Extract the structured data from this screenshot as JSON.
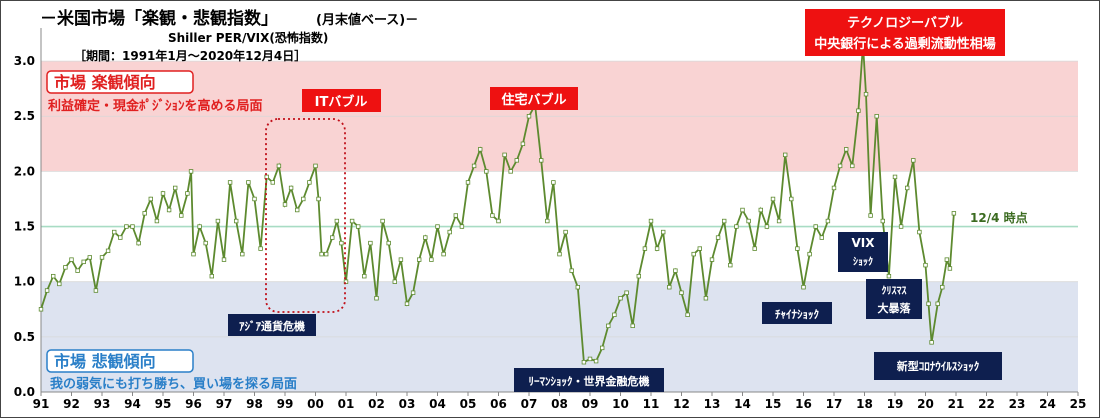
{
  "chart_data": {
    "type": "line",
    "title": "－米国市場「楽観・悲観指数」",
    "title_suffix": "(月末値ベース)－",
    "subtitle": "Shiller PER/VIX(恐怖指数)",
    "period": "［期間：1991年1月～2020年12月4日］",
    "y_ticks": [
      "0.0",
      "0.5",
      "1.0",
      "1.5",
      "2.0",
      "2.5",
      "3.0"
    ],
    "ylim": [
      0,
      3.3
    ],
    "x_ticks": [
      "91",
      "92",
      "93",
      "94",
      "95",
      "96",
      "97",
      "98",
      "99",
      "00",
      "01",
      "02",
      "03",
      "04",
      "05",
      "06",
      "07",
      "08",
      "09",
      "10",
      "11",
      "12",
      "13",
      "14",
      "15",
      "16",
      "17",
      "18",
      "19",
      "20",
      "21",
      "22",
      "23",
      "24",
      "25"
    ],
    "xlim": [
      1991,
      2025
    ],
    "bands": {
      "optimism": {
        "from": 2.0,
        "to": 3.0,
        "color": "#f9d3d3"
      },
      "pessimism": {
        "from": 0.0,
        "to": 1.0,
        "color": "#dde3f0"
      },
      "reference_line": {
        "value": 1.5,
        "color": "#a8dcc4"
      }
    },
    "series": [
      {
        "color": "#5d8a2f",
        "points": [
          [
            1991.0,
            0.75
          ],
          [
            1991.2,
            0.92
          ],
          [
            1991.4,
            1.05
          ],
          [
            1991.6,
            0.98
          ],
          [
            1991.8,
            1.13
          ],
          [
            1992.0,
            1.2
          ],
          [
            1992.2,
            1.1
          ],
          [
            1992.4,
            1.18
          ],
          [
            1992.6,
            1.22
          ],
          [
            1992.8,
            0.92
          ],
          [
            1993.0,
            1.22
          ],
          [
            1993.2,
            1.28
          ],
          [
            1993.4,
            1.45
          ],
          [
            1993.6,
            1.4
          ],
          [
            1993.8,
            1.5
          ],
          [
            1994.0,
            1.5
          ],
          [
            1994.2,
            1.35
          ],
          [
            1994.4,
            1.62
          ],
          [
            1994.6,
            1.75
          ],
          [
            1994.8,
            1.55
          ],
          [
            1995.0,
            1.8
          ],
          [
            1995.2,
            1.65
          ],
          [
            1995.4,
            1.85
          ],
          [
            1995.6,
            1.6
          ],
          [
            1995.8,
            1.8
          ],
          [
            1995.92,
            2.0
          ],
          [
            1996.0,
            1.25
          ],
          [
            1996.2,
            1.5
          ],
          [
            1996.4,
            1.35
          ],
          [
            1996.6,
            1.05
          ],
          [
            1996.8,
            1.55
          ],
          [
            1997.0,
            1.2
          ],
          [
            1997.2,
            1.9
          ],
          [
            1997.4,
            1.55
          ],
          [
            1997.6,
            1.25
          ],
          [
            1997.8,
            1.9
          ],
          [
            1998.0,
            1.75
          ],
          [
            1998.2,
            1.3
          ],
          [
            1998.4,
            1.95
          ],
          [
            1998.6,
            1.9
          ],
          [
            1998.8,
            2.05
          ],
          [
            1999.0,
            1.7
          ],
          [
            1999.2,
            1.85
          ],
          [
            1999.4,
            1.65
          ],
          [
            1999.6,
            1.75
          ],
          [
            1999.8,
            1.9
          ],
          [
            2000.0,
            2.05
          ],
          [
            2000.1,
            1.75
          ],
          [
            2000.2,
            1.25
          ],
          [
            2000.35,
            1.25
          ],
          [
            2000.55,
            1.4
          ],
          [
            2000.7,
            1.55
          ],
          [
            2000.85,
            1.35
          ],
          [
            2001.0,
            1.0
          ],
          [
            2001.2,
            1.55
          ],
          [
            2001.4,
            1.5
          ],
          [
            2001.6,
            1.05
          ],
          [
            2001.8,
            1.35
          ],
          [
            2002.0,
            0.85
          ],
          [
            2002.2,
            1.55
          ],
          [
            2002.4,
            1.35
          ],
          [
            2002.6,
            1.0
          ],
          [
            2002.8,
            1.2
          ],
          [
            2003.0,
            0.8
          ],
          [
            2003.2,
            0.9
          ],
          [
            2003.4,
            1.2
          ],
          [
            2003.6,
            1.4
          ],
          [
            2003.8,
            1.2
          ],
          [
            2004.0,
            1.5
          ],
          [
            2004.2,
            1.25
          ],
          [
            2004.4,
            1.45
          ],
          [
            2004.6,
            1.6
          ],
          [
            2004.8,
            1.5
          ],
          [
            2005.0,
            1.9
          ],
          [
            2005.2,
            2.05
          ],
          [
            2005.4,
            2.2
          ],
          [
            2005.6,
            2.0
          ],
          [
            2005.8,
            1.6
          ],
          [
            2006.0,
            1.55
          ],
          [
            2006.2,
            2.15
          ],
          [
            2006.4,
            2.0
          ],
          [
            2006.6,
            2.1
          ],
          [
            2006.8,
            2.25
          ],
          [
            2007.0,
            2.5
          ],
          [
            2007.2,
            2.6
          ],
          [
            2007.4,
            2.1
          ],
          [
            2007.6,
            1.55
          ],
          [
            2007.8,
            1.9
          ],
          [
            2008.0,
            1.25
          ],
          [
            2008.2,
            1.45
          ],
          [
            2008.4,
            1.1
          ],
          [
            2008.6,
            0.95
          ],
          [
            2008.8,
            0.27
          ],
          [
            2009.0,
            0.3
          ],
          [
            2009.2,
            0.28
          ],
          [
            2009.4,
            0.4
          ],
          [
            2009.6,
            0.6
          ],
          [
            2009.8,
            0.7
          ],
          [
            2010.0,
            0.85
          ],
          [
            2010.2,
            0.9
          ],
          [
            2010.4,
            0.6
          ],
          [
            2010.6,
            1.05
          ],
          [
            2010.8,
            1.3
          ],
          [
            2011.0,
            1.55
          ],
          [
            2011.2,
            1.3
          ],
          [
            2011.4,
            1.45
          ],
          [
            2011.6,
            0.95
          ],
          [
            2011.8,
            1.1
          ],
          [
            2012.0,
            0.9
          ],
          [
            2012.2,
            0.7
          ],
          [
            2012.4,
            1.25
          ],
          [
            2012.6,
            1.3
          ],
          [
            2012.8,
            0.85
          ],
          [
            2013.0,
            1.2
          ],
          [
            2013.2,
            1.4
          ],
          [
            2013.4,
            1.55
          ],
          [
            2013.6,
            1.15
          ],
          [
            2013.8,
            1.5
          ],
          [
            2014.0,
            1.65
          ],
          [
            2014.2,
            1.55
          ],
          [
            2014.4,
            1.3
          ],
          [
            2014.6,
            1.65
          ],
          [
            2014.8,
            1.5
          ],
          [
            2015.0,
            1.75
          ],
          [
            2015.2,
            1.55
          ],
          [
            2015.4,
            2.15
          ],
          [
            2015.6,
            1.75
          ],
          [
            2015.8,
            1.3
          ],
          [
            2016.0,
            0.95
          ],
          [
            2016.2,
            1.25
          ],
          [
            2016.4,
            1.5
          ],
          [
            2016.6,
            1.4
          ],
          [
            2016.8,
            1.55
          ],
          [
            2017.0,
            1.85
          ],
          [
            2017.2,
            2.05
          ],
          [
            2017.4,
            2.2
          ],
          [
            2017.6,
            2.05
          ],
          [
            2017.8,
            2.55
          ],
          [
            2017.95,
            3.15
          ],
          [
            2018.05,
            2.7
          ],
          [
            2018.2,
            1.6
          ],
          [
            2018.4,
            2.5
          ],
          [
            2018.6,
            1.55
          ],
          [
            2018.8,
            1.05
          ],
          [
            2019.0,
            1.95
          ],
          [
            2019.2,
            1.5
          ],
          [
            2019.4,
            1.85
          ],
          [
            2019.6,
            2.1
          ],
          [
            2019.8,
            1.45
          ],
          [
            2020.0,
            1.15
          ],
          [
            2020.1,
            0.8
          ],
          [
            2020.2,
            0.45
          ],
          [
            2020.4,
            0.8
          ],
          [
            2020.55,
            0.95
          ],
          [
            2020.7,
            1.2
          ],
          [
            2020.8,
            1.12
          ],
          [
            2020.93,
            1.62
          ]
        ]
      }
    ],
    "annotations": {
      "optimism_head": "市場 楽観傾向",
      "optimism_desc": "利益確定・現金ﾎﾟｼﾞｼｮﾝを高める局面",
      "pessimism_head": "市場 悲観傾向",
      "pessimism_desc": "我の弱気にも打ち勝ち、買い場を探る局面",
      "it_bubble": "ITバブル",
      "housing_bubble": "住宅バブル",
      "tech_bubble_1": "テクノロジーバブル",
      "tech_bubble_2": "中央銀行による過剰流動性相場",
      "asia_crisis": "ｱｼﾞｱ通貨危機",
      "lehman": "ﾘｰﾏﾝｼｮｯｸ・世界金融危機",
      "china_shock": "ﾁｬｲﾅｼｮｯｸ",
      "vix_shock_1": "VIX",
      "vix_shock_2": "ｼｮｯｸ",
      "xmas_1": "ｸﾘｽﾏｽ",
      "xmas_2": "大暴落",
      "corona": "新型ｺﾛﾅｳｲﾙｽｼｮｯｸ",
      "latest": "12/4 時点"
    }
  }
}
